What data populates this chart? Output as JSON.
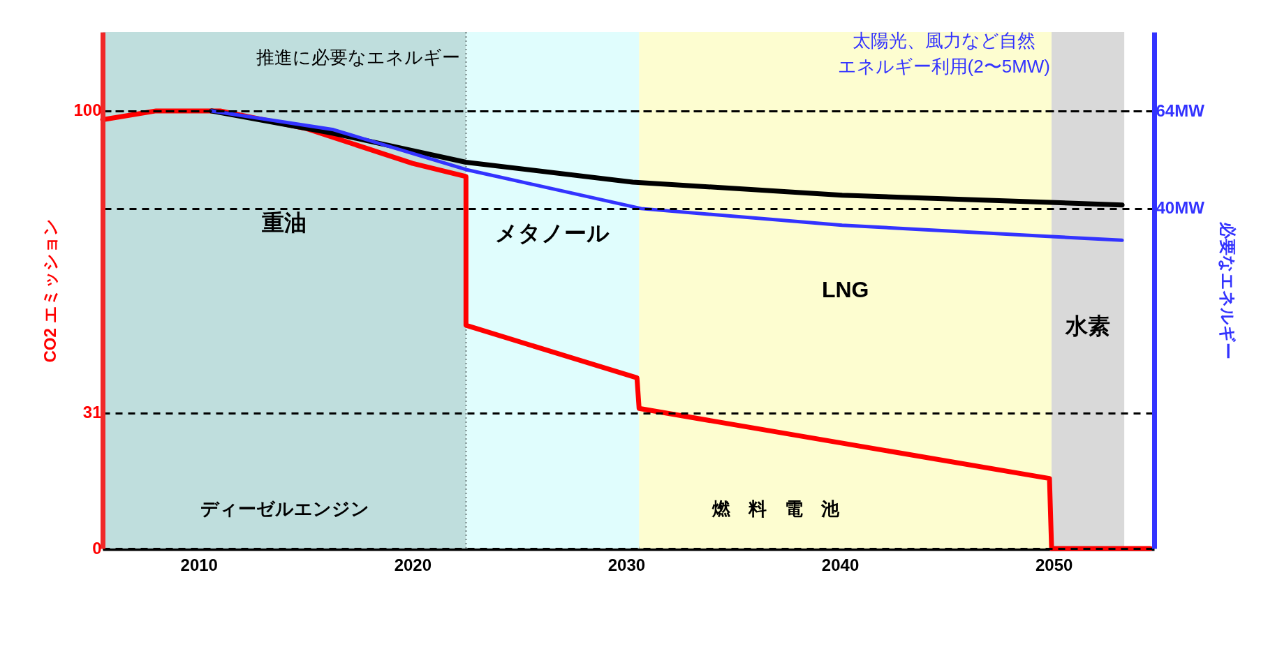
{
  "chart_data": {
    "type": "line",
    "ylabel": "CO2 エミッション",
    "y2label": "必要なエネルギー",
    "xlim": [
      2005.5,
      2054.7
    ],
    "xticks": [
      2010,
      2020,
      2030,
      2040,
      2050
    ],
    "ylim": [
      0,
      118
    ],
    "yticks": [
      0,
      31,
      100
    ],
    "y2lim": [
      -43.6,
      83.4
    ],
    "y2ticks": [
      {
        "value": 40,
        "label": "40MW"
      },
      {
        "value": 64,
        "label": "64MW"
      }
    ],
    "grid": "y",
    "marker": "none",
    "line_style": "solid",
    "series": [
      {
        "color": "#ff0000",
        "x": [
          2005.5,
          2008,
          2011,
          2015,
          2020,
          2022.5,
          2022.5,
          2030.5,
          2030.6,
          2049.8,
          2049.9,
          2054.5
        ],
        "values": [
          98,
          100,
          100,
          96,
          88,
          85,
          51,
          39,
          32,
          16,
          0,
          0
        ]
      },
      {
        "color": "#000000",
        "axis": "y2",
        "x": [
          2010.6,
          2016.3,
          2022.5,
          2030.3,
          2040.1,
          2053.2
        ],
        "values": [
          64,
          58.5,
          51.4,
          46.5,
          43.3,
          40.9
        ]
      },
      {
        "color": "#3333ff",
        "axis": "y2",
        "x": [
          2010.6,
          2016.3,
          2022.5,
          2030.7,
          2040.1,
          2049.6,
          2053.2
        ],
        "values": [
          64,
          59.4,
          49.6,
          40,
          35.9,
          33.2,
          32.2
        ]
      }
    ],
    "bands": [
      {
        "axis": "x",
        "from": 2005.5,
        "to": 2022.5,
        "label": "重油",
        "color": "#bfdedd"
      },
      {
        "axis": "x",
        "from": 2022.5,
        "to": 2030.6,
        "label": "メタノール",
        "color": "#e0fdfd"
      },
      {
        "axis": "x",
        "from": 2030.6,
        "to": 2049.9,
        "label": "LNG",
        "color": "#fdfdd0"
      },
      {
        "axis": "x",
        "from": 2049.9,
        "to": 2053.3,
        "label": "水素",
        "color": "#d9d9d9"
      }
    ],
    "ref_lines": [
      {
        "axis": "x",
        "value": 2022.5,
        "line_style": "dotted",
        "color": "#000000"
      }
    ],
    "annotations": [
      "推進に必要なエネルギー",
      "太陽光、風力など自然",
      "エネルギー利用(2〜5MW)",
      "ディーゼルエンジン",
      "燃　料　電　池"
    ]
  }
}
